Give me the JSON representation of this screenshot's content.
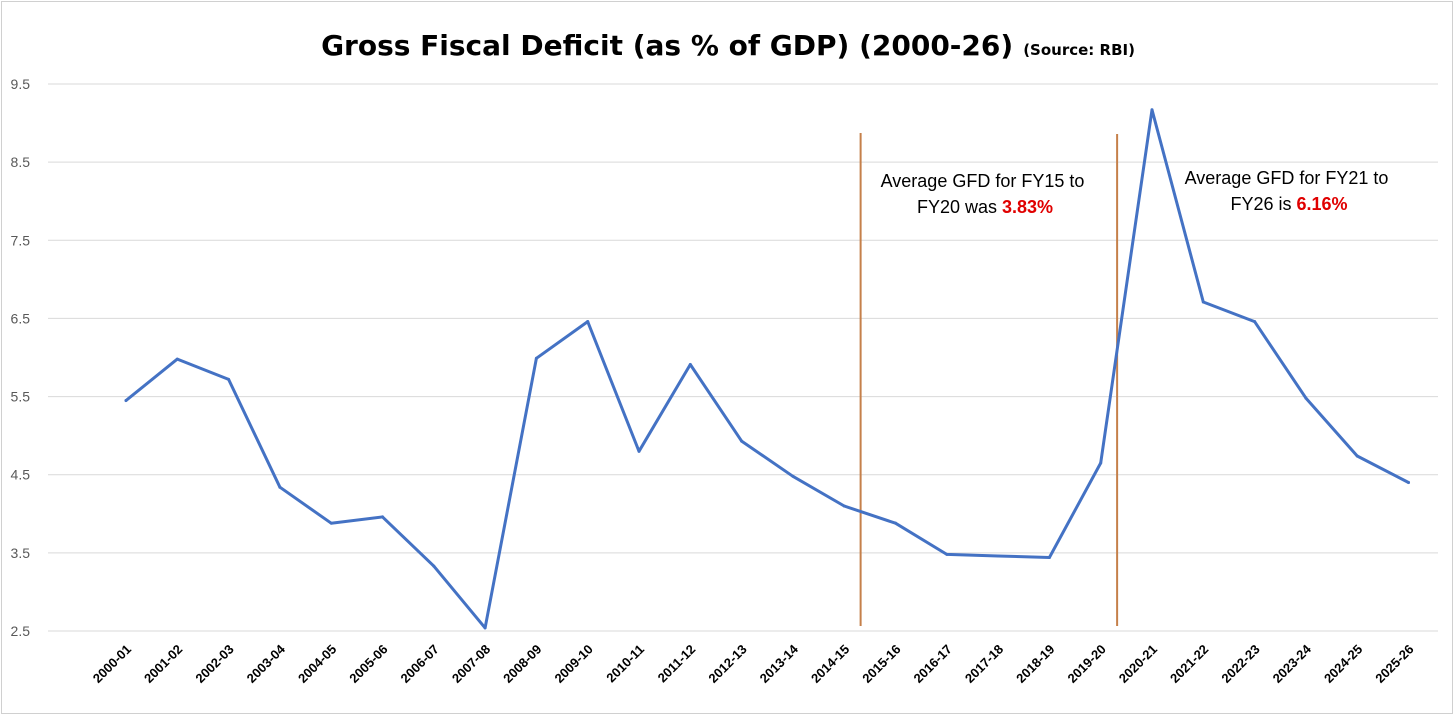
{
  "chart_data": {
    "type": "line",
    "title": "Gross Fiscal Deficit (as % of GDP) (2000-26)",
    "subtitle": "(Source: RBI)",
    "xlabel": "",
    "ylabel": "",
    "ylim": [
      2.5,
      9.5
    ],
    "yticks": [
      "9.5",
      "8.5",
      "7.5",
      "6.5",
      "5.5",
      "4.5",
      "3.5",
      "2.5"
    ],
    "grid": true,
    "legend": "none",
    "categories": [
      "2000-01",
      "2001-02",
      "2002-03",
      "2003-04",
      "2004-05",
      "2005-06",
      "2006-07",
      "2007-08",
      "2008-09",
      "2009-10",
      "2010-11",
      "2011-12",
      "2012-13",
      "2013-14",
      "2014-15",
      "2015-16",
      "2016-17",
      "2017-18",
      "2018-19",
      "2019-20",
      "2020-21",
      "2021-22",
      "2022-23",
      "2023-24",
      "2024-25",
      "2025-26"
    ],
    "series": [
      {
        "color": "#4472c4",
        "values": [
          5.45,
          5.98,
          5.72,
          4.34,
          3.88,
          3.96,
          3.33,
          2.54,
          5.99,
          6.46,
          4.8,
          5.91,
          4.93,
          4.48,
          4.1,
          3.88,
          3.48,
          3.46,
          3.44,
          4.65,
          9.17,
          6.71,
          6.46,
          5.48,
          4.74,
          4.4
        ]
      }
    ],
    "reference_lines": [
      {
        "between": [
          "2014-15",
          "2015-16"
        ],
        "color": "#c5804a"
      },
      {
        "between": [
          "2019-20",
          "2020-21"
        ],
        "color": "#c5804a"
      }
    ],
    "annotations": [
      {
        "line1": "Average GFD for FY15 to",
        "line2_prefix": "FY20 was ",
        "highlight": "3.83%",
        "highlight_color": "#e00000"
      },
      {
        "line1": "Average GFD for FY21 to",
        "line2_prefix": "FY26 is ",
        "highlight": "6.16%",
        "highlight_color": "#e00000"
      }
    ]
  }
}
